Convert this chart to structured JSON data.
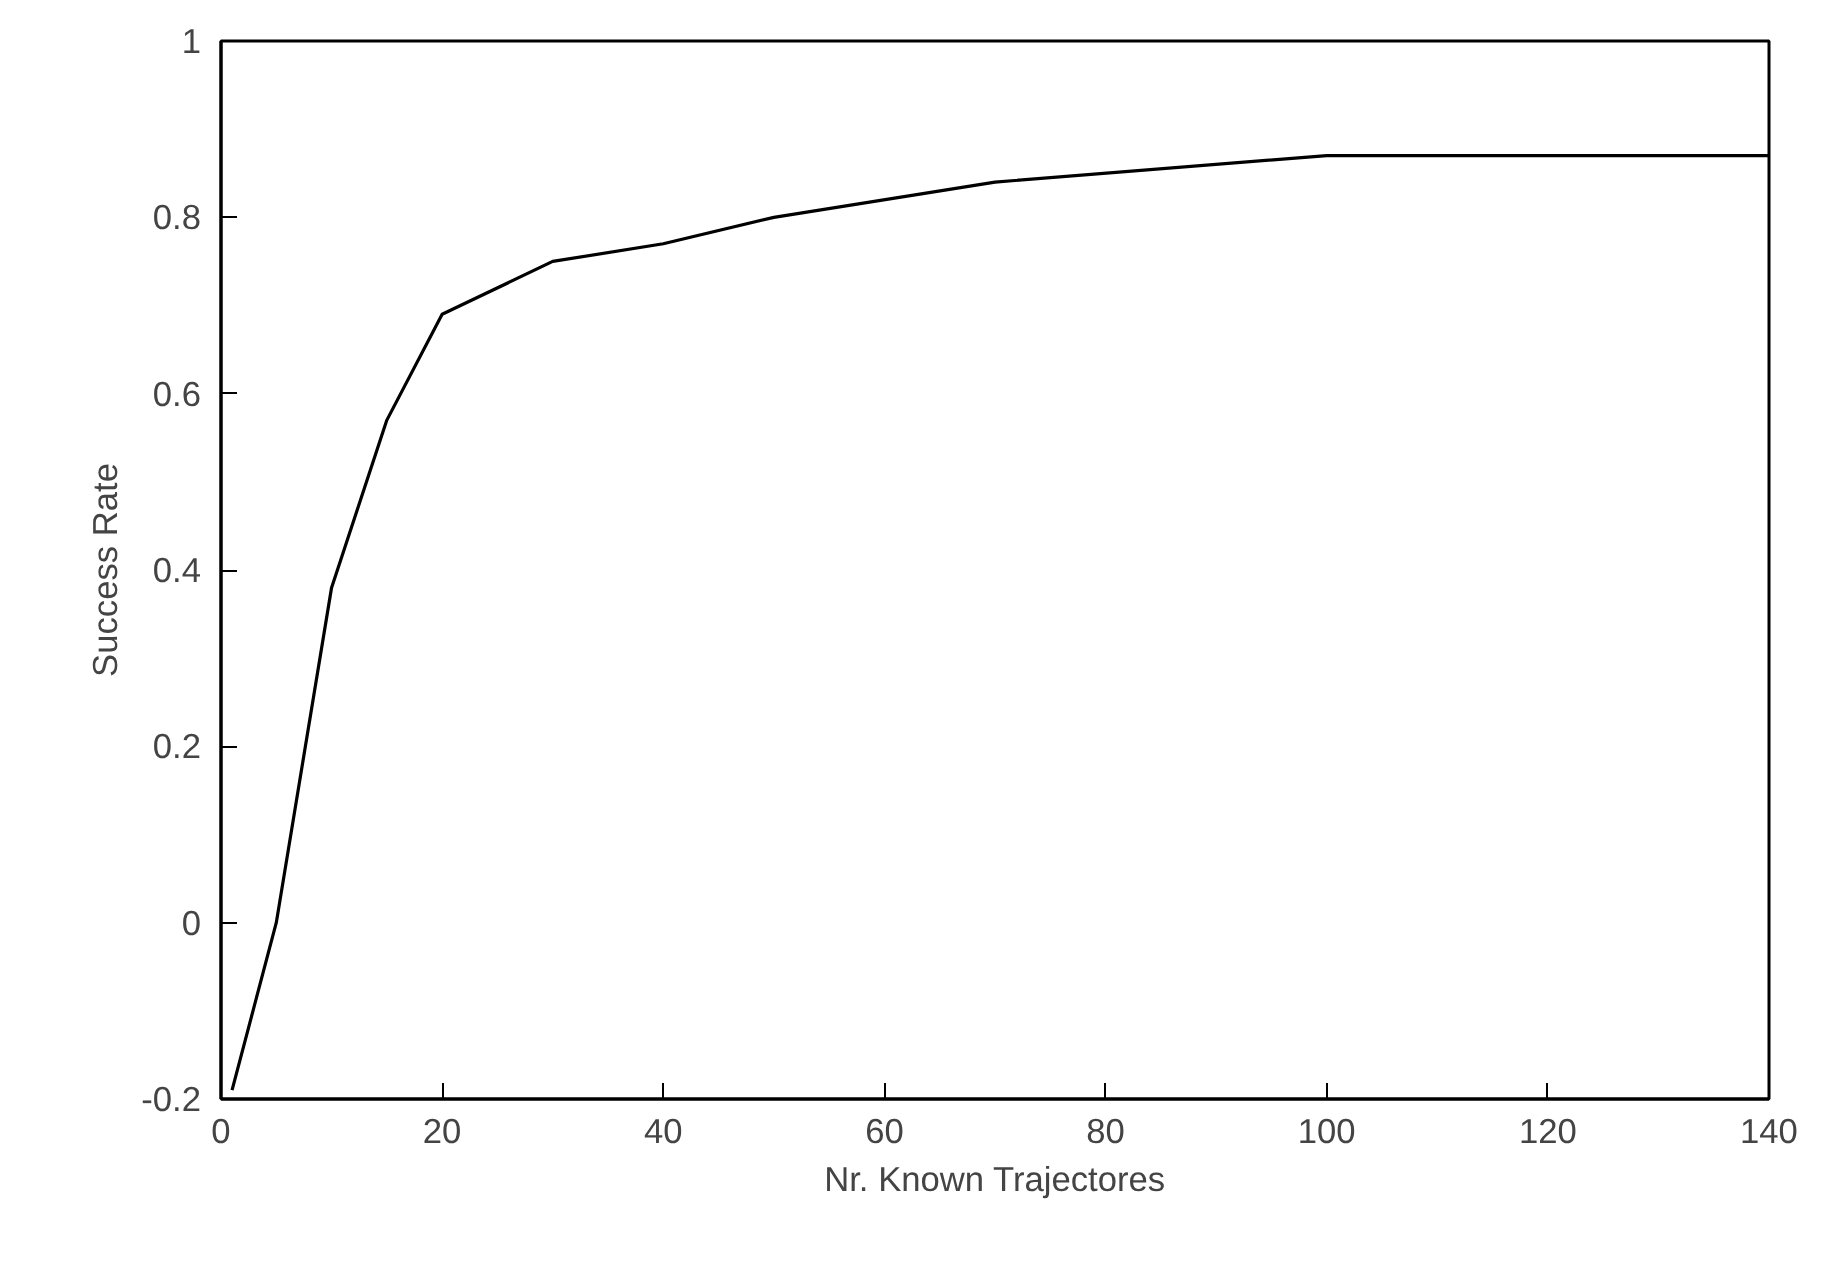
{
  "chart_data": {
    "type": "line",
    "xlabel": "Nr. Known Trajectores",
    "ylabel": "Success Rate",
    "x": [
      1,
      5,
      10,
      15,
      20,
      30,
      40,
      50,
      70,
      100,
      140
    ],
    "series": [
      {
        "color": "#000000",
        "values": [
          -0.19,
          0.0,
          0.38,
          0.57,
          0.69,
          0.75,
          0.77,
          0.8,
          0.84,
          0.87,
          0.87
        ]
      }
    ],
    "xlim": [
      0,
      140
    ],
    "xticks": [
      0,
      20,
      40,
      60,
      80,
      100,
      120,
      140
    ],
    "ylim": [
      -0.2,
      1
    ],
    "yticks": [
      -0.2,
      0,
      0.2,
      0.4,
      0.6,
      0.8,
      1
    ],
    "grid": false,
    "marker": "none",
    "line_style": "solid"
  }
}
